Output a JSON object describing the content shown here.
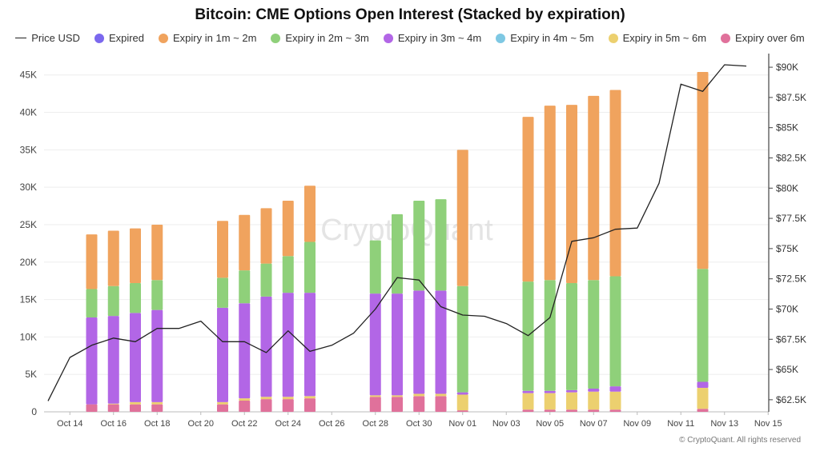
{
  "chart_data": {
    "type": "bar",
    "title": "Bitcoin: CME Options Open Interest (Stacked by expiration)",
    "watermark": "CryptoQuant",
    "credit": "© CryptoQuant. All rights reserved",
    "x_tick_labels": [
      "Oct 14",
      "Oct 16",
      "Oct 18",
      "Oct 20",
      "Oct 22",
      "Oct 24",
      "Oct 26",
      "Oct 28",
      "Oct 30",
      "Nov 01",
      "Nov 03",
      "Nov 05",
      "Nov 07",
      "Nov 09",
      "Nov 11",
      "Nov 13",
      "Nov 15"
    ],
    "x_start": "Oct 13",
    "left_axis": {
      "ticks": [
        0,
        5000,
        10000,
        15000,
        20000,
        25000,
        30000,
        35000,
        40000,
        45000
      ],
      "tick_labels": [
        "0",
        "5K",
        "10K",
        "15K",
        "20K",
        "25K",
        "30K",
        "35K",
        "40K",
        "45K"
      ],
      "range": [
        0,
        47000
      ]
    },
    "right_axis": {
      "ticks": [
        62500,
        65000,
        67500,
        70000,
        72500,
        75000,
        77500,
        80000,
        82500,
        85000,
        87500,
        90000
      ],
      "tick_labels": [
        "$62.5K",
        "$65K",
        "$67.5K",
        "$70K",
        "$72.5K",
        "$75K",
        "$77.5K",
        "$80K",
        "$82.5K",
        "$85K",
        "$87.5K",
        "$90K"
      ],
      "range": [
        61500,
        90600
      ]
    },
    "series": [
      {
        "name": "Price USD",
        "kind": "line",
        "color": "#222222"
      },
      {
        "name": "Expired",
        "kind": "bar",
        "color": "#7b68ee"
      },
      {
        "name": "Expiry in 1m ~ 2m",
        "kind": "bar",
        "color": "#f0a35e"
      },
      {
        "name": "Expiry in 2m ~ 3m",
        "kind": "bar",
        "color": "#8fd07a"
      },
      {
        "name": "Expiry in 3m ~ 4m",
        "kind": "bar",
        "color": "#b266e6"
      },
      {
        "name": "Expiry in 4m ~ 5m",
        "kind": "bar",
        "color": "#7ec8e3"
      },
      {
        "name": "Expiry in 5m ~ 6m",
        "kind": "bar",
        "color": "#ecd06f"
      },
      {
        "name": "Expiry over 6m",
        "kind": "bar",
        "color": "#e0719b"
      }
    ],
    "bars": [
      {
        "date": "Oct 15",
        "over6m": 1000,
        "m5_6": 0,
        "m4_5": 0,
        "m3_4": 11600,
        "m2_3": 3800,
        "m1_2": 7300
      },
      {
        "date": "Oct 16",
        "over6m": 1000,
        "m5_6": 100,
        "m4_5": 0,
        "m3_4": 11700,
        "m2_3": 4000,
        "m1_2": 7400
      },
      {
        "date": "Oct 17",
        "over6m": 1000,
        "m5_6": 300,
        "m4_5": 0,
        "m3_4": 11900,
        "m2_3": 4000,
        "m1_2": 7300
      },
      {
        "date": "Oct 18",
        "over6m": 1000,
        "m5_6": 300,
        "m4_5": 0,
        "m3_4": 12300,
        "m2_3": 4000,
        "m1_2": 7400
      },
      {
        "date": "Oct 21",
        "over6m": 1000,
        "m5_6": 300,
        "m4_5": 0,
        "m3_4": 12600,
        "m2_3": 4000,
        "m1_2": 7600
      },
      {
        "date": "Oct 22",
        "over6m": 1500,
        "m5_6": 300,
        "m4_5": 0,
        "m3_4": 12700,
        "m2_3": 4400,
        "m1_2": 7400
      },
      {
        "date": "Oct 23",
        "over6m": 1700,
        "m5_6": 300,
        "m4_5": 0,
        "m3_4": 13400,
        "m2_3": 4400,
        "m1_2": 7400
      },
      {
        "date": "Oct 24",
        "over6m": 1700,
        "m5_6": 300,
        "m4_5": 0,
        "m3_4": 13900,
        "m2_3": 4900,
        "m1_2": 7400
      },
      {
        "date": "Oct 25",
        "over6m": 1800,
        "m5_6": 300,
        "m4_5": 0,
        "m3_4": 13800,
        "m2_3": 6800,
        "m1_2": 7500
      },
      {
        "date": "Oct 28",
        "over6m": 2000,
        "m5_6": 200,
        "m4_5": 0,
        "m3_4": 13600,
        "m2_3": 7100,
        "m1_2": 0
      },
      {
        "date": "Oct 29",
        "over6m": 2000,
        "m5_6": 200,
        "m4_5": 0,
        "m3_4": 13600,
        "m2_3": 10600,
        "m1_2": 0
      },
      {
        "date": "Oct 30",
        "over6m": 2100,
        "m5_6": 300,
        "m4_5": 0,
        "m3_4": 13800,
        "m2_3": 12000,
        "m1_2": 0
      },
      {
        "date": "Oct 31",
        "over6m": 2100,
        "m5_6": 300,
        "m4_5": 0,
        "m3_4": 13800,
        "m2_3": 12200,
        "m1_2": 0
      },
      {
        "date": "Nov 01",
        "over6m": 200,
        "m5_6": 2100,
        "m4_5": 0,
        "m3_4": 300,
        "m2_3": 14200,
        "m1_2": 18200
      },
      {
        "date": "Nov 04",
        "over6m": 300,
        "m5_6": 2200,
        "m4_5": 0,
        "m3_4": 300,
        "m2_3": 14600,
        "m1_2": 22000
      },
      {
        "date": "Nov 05",
        "over6m": 300,
        "m5_6": 2200,
        "m4_5": 0,
        "m3_4": 300,
        "m2_3": 14800,
        "m1_2": 23300
      },
      {
        "date": "Nov 06",
        "over6m": 300,
        "m5_6": 2300,
        "m4_5": 0,
        "m3_4": 300,
        "m2_3": 14300,
        "m1_2": 23800
      },
      {
        "date": "Nov 07",
        "over6m": 300,
        "m5_6": 2400,
        "m4_5": 0,
        "m3_4": 400,
        "m2_3": 14500,
        "m1_2": 24600
      },
      {
        "date": "Nov 08",
        "over6m": 300,
        "m5_6": 2400,
        "m4_5": 0,
        "m3_4": 700,
        "m2_3": 14700,
        "m1_2": 24900
      },
      {
        "date": "Nov 12",
        "over6m": 400,
        "m5_6": 2800,
        "m4_5": 0,
        "m3_4": 800,
        "m2_3": 15100,
        "m1_2": 26300
      }
    ],
    "price_usd": [
      {
        "date": "Oct 13",
        "value": 62400
      },
      {
        "date": "Oct 14",
        "value": 66000
      },
      {
        "date": "Oct 15",
        "value": 67000
      },
      {
        "date": "Oct 16",
        "value": 67600
      },
      {
        "date": "Oct 17",
        "value": 67300
      },
      {
        "date": "Oct 18",
        "value": 68400
      },
      {
        "date": "Oct 19",
        "value": 68400
      },
      {
        "date": "Oct 20",
        "value": 69000
      },
      {
        "date": "Oct 21",
        "value": 67300
      },
      {
        "date": "Oct 22",
        "value": 67300
      },
      {
        "date": "Oct 23",
        "value": 66400
      },
      {
        "date": "Oct 24",
        "value": 68200
      },
      {
        "date": "Oct 25",
        "value": 66500
      },
      {
        "date": "Oct 26",
        "value": 67000
      },
      {
        "date": "Oct 27",
        "value": 68000
      },
      {
        "date": "Oct 28",
        "value": 70000
      },
      {
        "date": "Oct 29",
        "value": 72600
      },
      {
        "date": "Oct 30",
        "value": 72400
      },
      {
        "date": "Oct 31",
        "value": 70200
      },
      {
        "date": "Nov 01",
        "value": 69500
      },
      {
        "date": "Nov 02",
        "value": 69400
      },
      {
        "date": "Nov 03",
        "value": 68800
      },
      {
        "date": "Nov 04",
        "value": 67800
      },
      {
        "date": "Nov 05",
        "value": 69300
      },
      {
        "date": "Nov 06",
        "value": 75600
      },
      {
        "date": "Nov 07",
        "value": 75900
      },
      {
        "date": "Nov 08",
        "value": 76600
      },
      {
        "date": "Nov 09",
        "value": 76700
      },
      {
        "date": "Nov 10",
        "value": 80400
      },
      {
        "date": "Nov 11",
        "value": 88600
      },
      {
        "date": "Nov 12",
        "value": 88000
      },
      {
        "date": "Nov 13",
        "value": 90200
      },
      {
        "date": "Nov 14",
        "value": 90100
      }
    ],
    "grid": true,
    "legend_position": "top"
  }
}
